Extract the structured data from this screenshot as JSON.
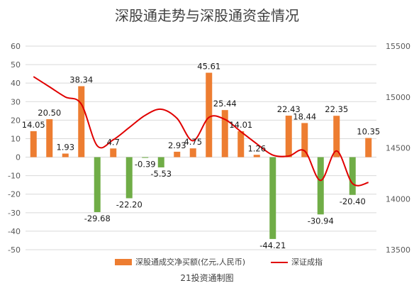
{
  "chart_data": {
    "type": "bar+line",
    "title": "深股通走势与深股通资金情况",
    "source": "21投资通制图",
    "left_axis": {
      "ylim": [
        -50,
        60
      ],
      "ticks": [
        60,
        50,
        40,
        30,
        20,
        10,
        0,
        -10,
        -20,
        -30,
        -40,
        -50
      ]
    },
    "right_axis": {
      "ylim": [
        13500,
        15500
      ],
      "ticks": [
        15500,
        15000,
        14500,
        14000,
        13500
      ]
    },
    "grid": true,
    "legend_position": "bottom",
    "series": [
      {
        "name": "深股通成交净买额(亿元,人民币)",
        "type": "bar",
        "axis": "left",
        "positive_color": "#ed7d31",
        "negative_color": "#70ad47",
        "values": [
          14.05,
          20.5,
          1.93,
          38.34,
          -29.68,
          4.7,
          -22.2,
          -0.39,
          -5.53,
          2.93,
          4.75,
          45.61,
          25.44,
          14.01,
          1.26,
          -44.21,
          22.43,
          18.44,
          -30.94,
          22.35,
          -20.4,
          10.35
        ],
        "labels": [
          "14.05",
          "20.50",
          "1.93",
          "38.34",
          "-29.68",
          "4.7",
          "-22.20",
          "-0.39",
          "-5.53",
          "2.93",
          "4.75",
          "45.61",
          "25.44",
          "14.01",
          "1.26",
          "-44.21",
          "22.43",
          "18.44",
          "-30.94",
          "22.35",
          "-20.40",
          "10.35"
        ]
      },
      {
        "name": "深证成指",
        "type": "line",
        "axis": "right",
        "color": "#e00000",
        "values": [
          15200,
          15100,
          15000,
          14930,
          14520,
          14580,
          14700,
          14820,
          14880,
          14790,
          14570,
          14800,
          14780,
          14660,
          14540,
          14430,
          14420,
          14470,
          14180,
          14470,
          14150,
          14160
        ]
      }
    ]
  }
}
